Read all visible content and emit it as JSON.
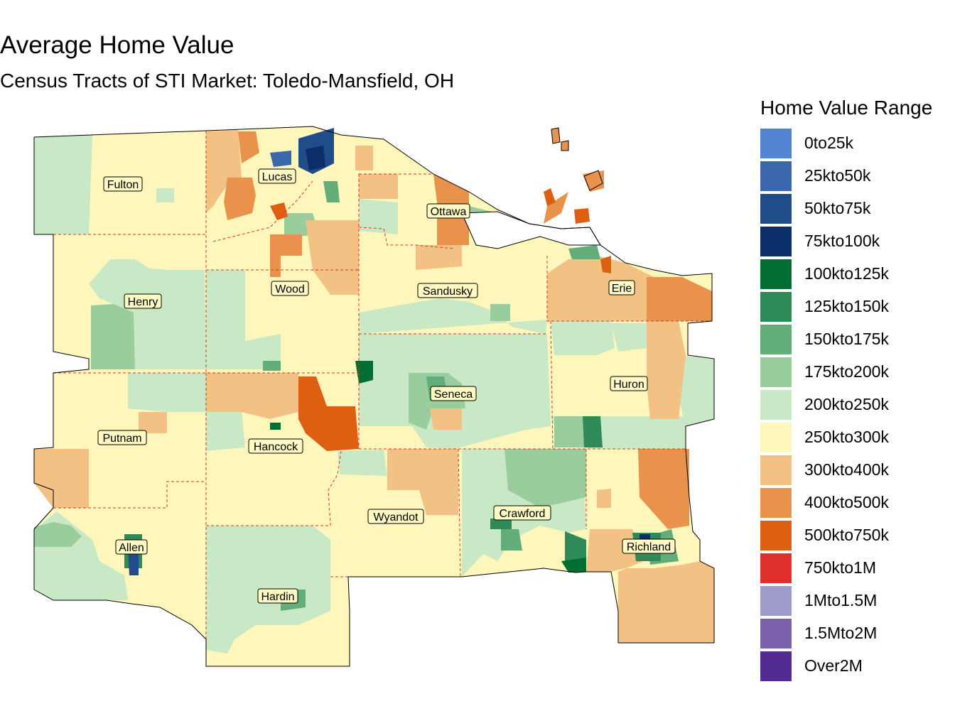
{
  "header": {
    "title": "Average Home Value",
    "subtitle": "Census Tracts of STI Market: Toledo-Mansfield, OH"
  },
  "legend": {
    "title": "Home Value Range",
    "items": [
      {
        "label": "0to25k",
        "color": "#5285d1"
      },
      {
        "label": "25kto50k",
        "color": "#3b68ad"
      },
      {
        "label": "50kto75k",
        "color": "#224b8a"
      },
      {
        "label": "75kto100k",
        "color": "#0b2e69"
      },
      {
        "label": "100kto125k",
        "color": "#006d32"
      },
      {
        "label": "125kto150k",
        "color": "#2e8b57"
      },
      {
        "label": "150kto175k",
        "color": "#63ad78"
      },
      {
        "label": "175kto200k",
        "color": "#9acd9d"
      },
      {
        "label": "200kto250k",
        "color": "#c9e8c5"
      },
      {
        "label": "250kto300k",
        "color": "#fff6bb"
      },
      {
        "label": "300kto400k",
        "color": "#f2c183"
      },
      {
        "label": "400kto500k",
        "color": "#e8924b"
      },
      {
        "label": "500kto750k",
        "color": "#de5f12"
      },
      {
        "label": "750kto1M",
        "color": "#e0302e"
      },
      {
        "label": "1Mto1.5M",
        "color": "#9e9bca"
      },
      {
        "label": "1.5Mto2M",
        "color": "#7b61ac"
      },
      {
        "label": "Over2M",
        "color": "#532b92"
      }
    ]
  },
  "counties": [
    {
      "name": "Fulton"
    },
    {
      "name": "Lucas"
    },
    {
      "name": "Ottawa"
    },
    {
      "name": "Henry"
    },
    {
      "name": "Wood"
    },
    {
      "name": "Sandusky"
    },
    {
      "name": "Erie"
    },
    {
      "name": "Seneca"
    },
    {
      "name": "Huron"
    },
    {
      "name": "Putnam"
    },
    {
      "name": "Hancock"
    },
    {
      "name": "Wyandot"
    },
    {
      "name": "Crawford"
    },
    {
      "name": "Allen"
    },
    {
      "name": "Richland"
    },
    {
      "name": "Hardin"
    }
  ]
}
